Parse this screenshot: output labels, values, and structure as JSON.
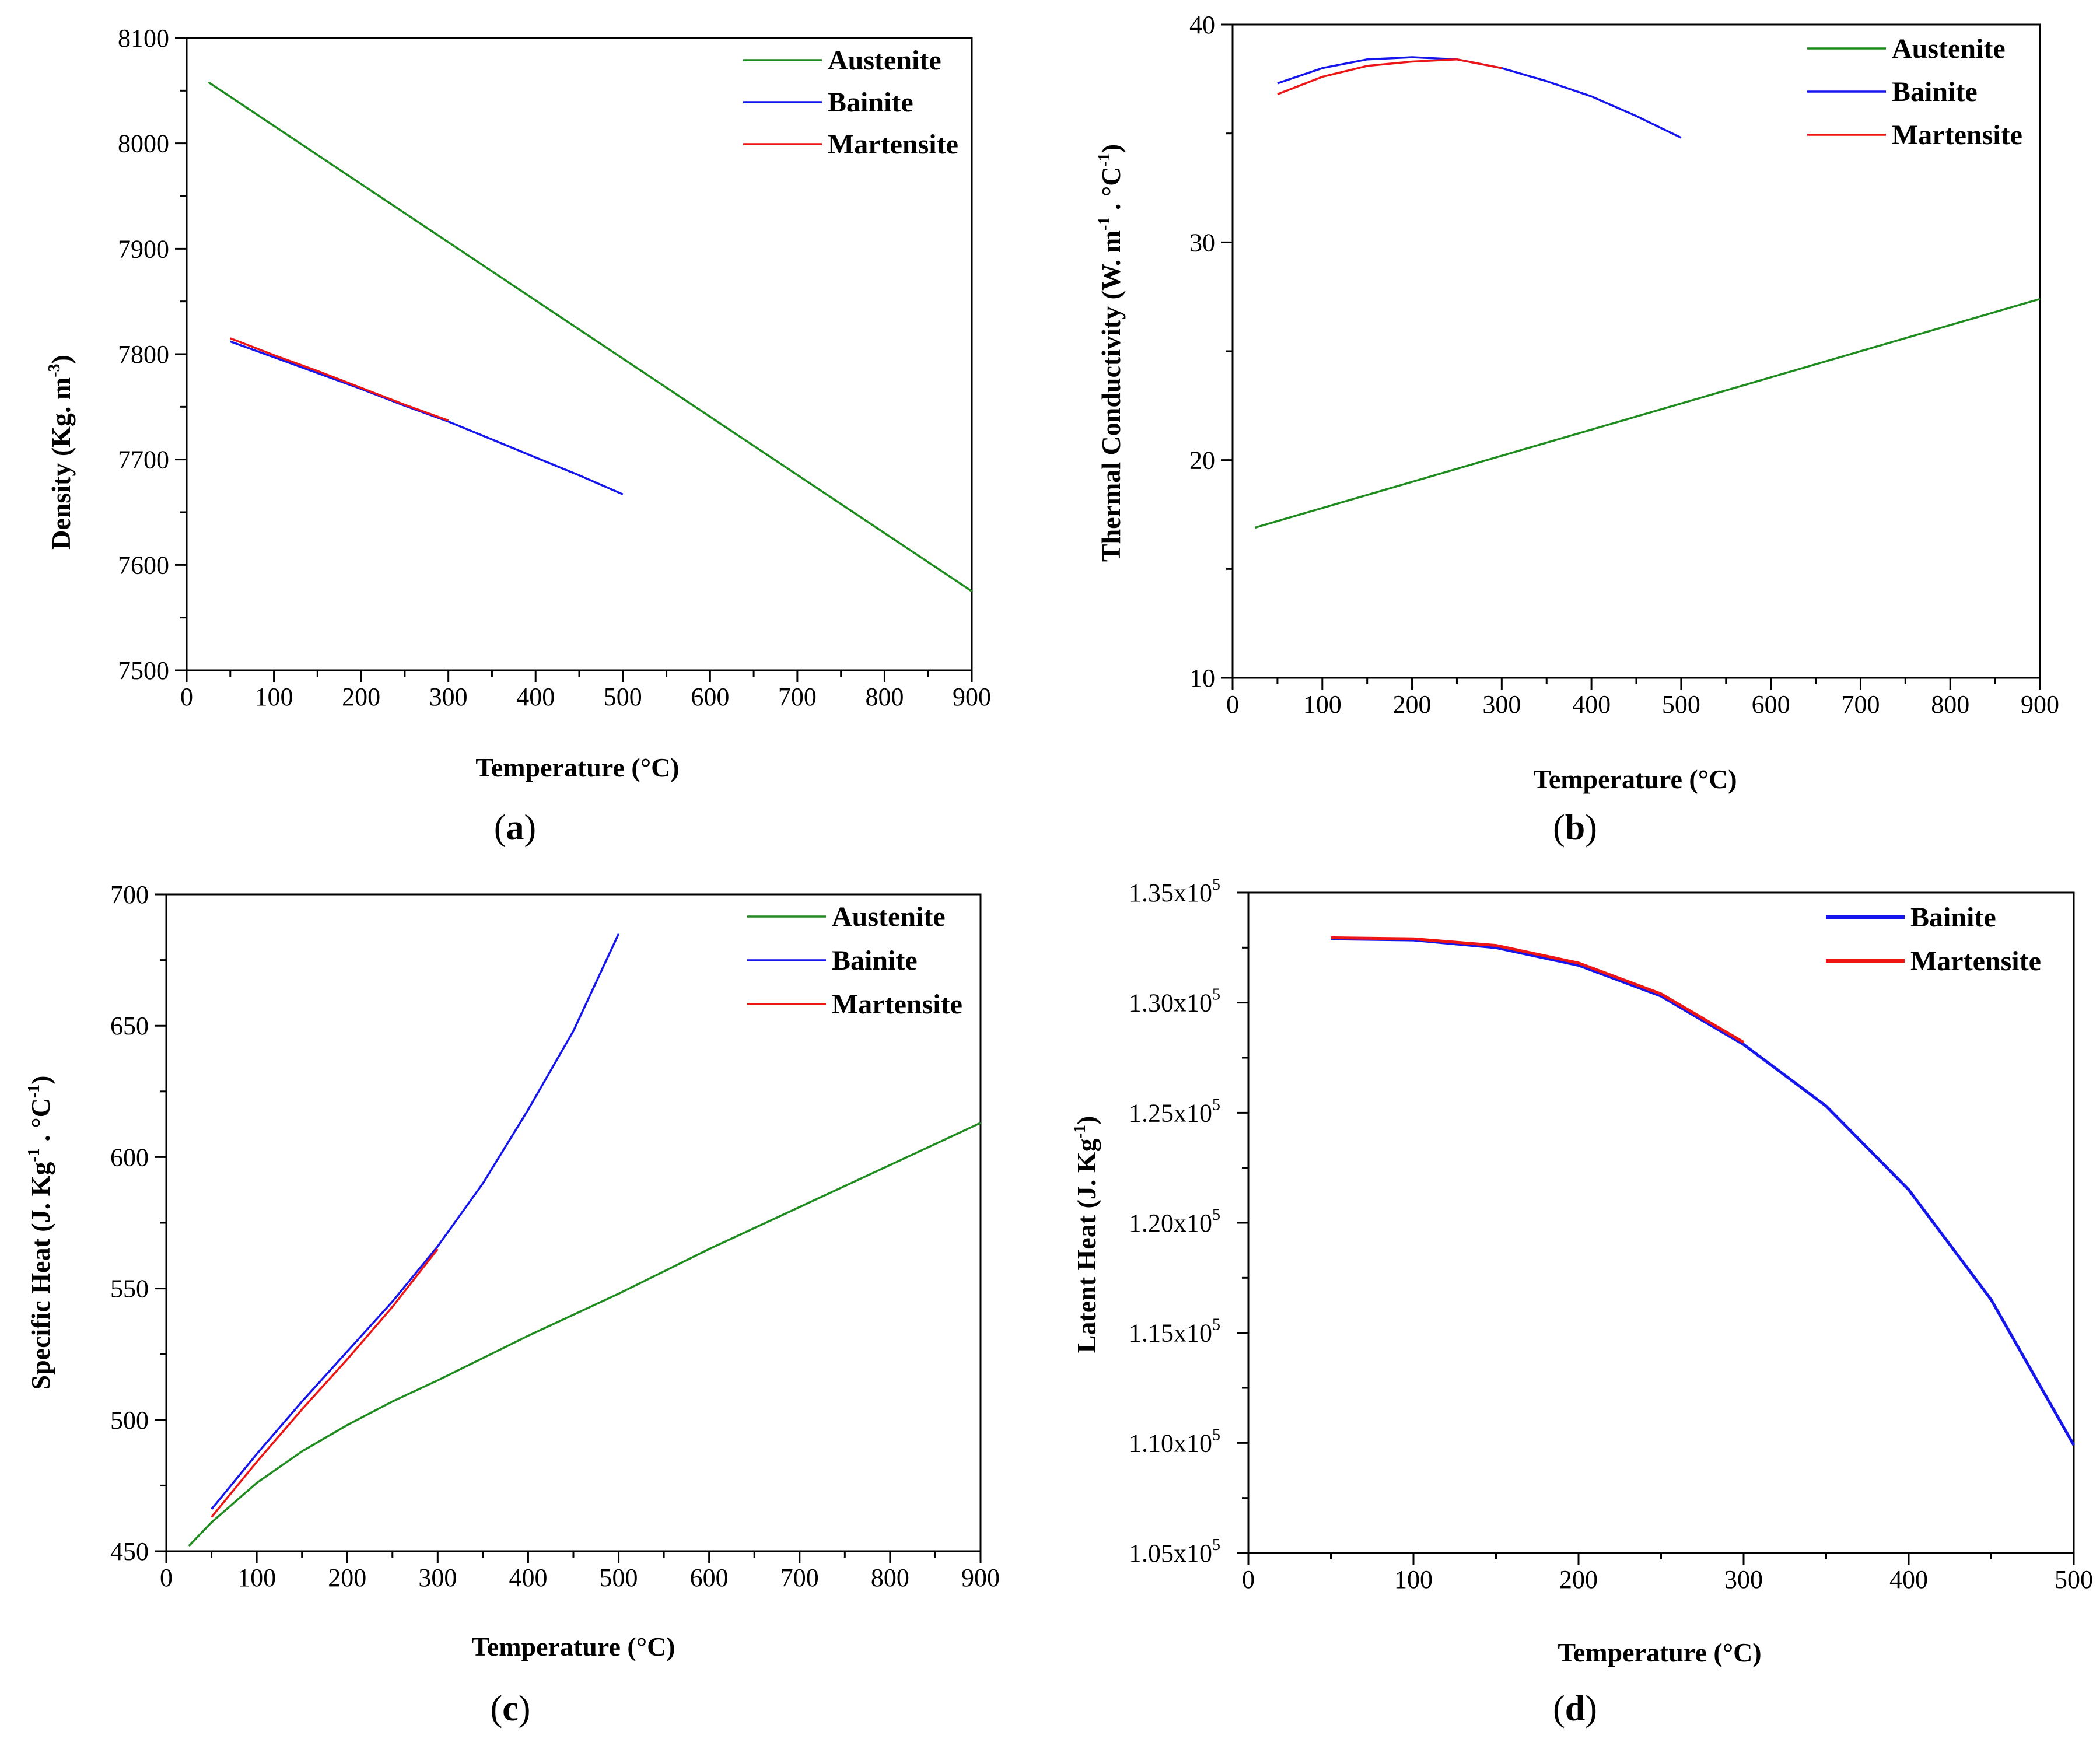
{
  "chart_data": [
    {
      "type": "line",
      "panel_label": "a",
      "xlabel": "Temperature (°C)",
      "ylabel": "Density (Kg. m-3)",
      "ylabel_parts": {
        "main": "Density (Kg. m",
        "sup": "-3",
        "close": ")"
      },
      "xlim": [
        0,
        900
      ],
      "ylim": [
        7500,
        8100
      ],
      "xticks": [
        0,
        100,
        200,
        300,
        400,
        500,
        600,
        700,
        800,
        900
      ],
      "yticks": [
        7500,
        7600,
        7700,
        7800,
        7900,
        8000,
        8100
      ],
      "ytick_labels": [
        "7500",
        "7600",
        "7700",
        "7800",
        "7900",
        "8000",
        "8100"
      ],
      "grid": false,
      "legend_position": "top-right",
      "series": [
        {
          "name": "Austenite",
          "color": "#1e8c1e",
          "x": [
            25,
            900
          ],
          "y": [
            8058,
            7575
          ]
        },
        {
          "name": "Bainite",
          "color": "#1515ee",
          "x": [
            50,
            100,
            150,
            200,
            250,
            300,
            350,
            400,
            450,
            500
          ],
          "y": [
            7812,
            7797,
            7782,
            7767,
            7751,
            7736,
            7719,
            7702,
            7685,
            7667
          ]
        },
        {
          "name": "Martensite",
          "color": "#ee1515",
          "x": [
            50,
            100,
            150,
            200,
            250,
            300
          ],
          "y": [
            7815,
            7799,
            7784,
            7768,
            7752,
            7737
          ]
        }
      ]
    },
    {
      "type": "line",
      "panel_label": "b",
      "xlabel": "Temperature (°C)",
      "ylabel": "Thermal Conductivity (W. m-1 . °C-1)",
      "ylabel_parts": {
        "main": "Thermal Conductivity (W. m",
        "sup1": "-1",
        "mid": " . °C",
        "sup2": "-1",
        "close": ")"
      },
      "xlim": [
        0,
        900
      ],
      "ylim": [
        10,
        40
      ],
      "xticks": [
        0,
        100,
        200,
        300,
        400,
        500,
        600,
        700,
        800,
        900
      ],
      "yticks": [
        10,
        20,
        30,
        40
      ],
      "ytick_labels": [
        "10",
        "20",
        "30",
        "40"
      ],
      "grid": false,
      "legend_position": "top-right",
      "series": [
        {
          "name": "Austenite",
          "color": "#1e8c1e",
          "x": [
            25,
            900
          ],
          "y": [
            16.9,
            27.4
          ]
        },
        {
          "name": "Bainite",
          "color": "#1515ee",
          "x": [
            50,
            100,
            150,
            200,
            250,
            300,
            350,
            400,
            450,
            500
          ],
          "y": [
            37.3,
            38.0,
            38.4,
            38.5,
            38.4,
            38.0,
            37.4,
            36.7,
            35.8,
            34.8
          ]
        },
        {
          "name": "Martensite",
          "color": "#ee1515",
          "x": [
            50,
            100,
            150,
            200,
            250,
            300
          ],
          "y": [
            36.8,
            37.6,
            38.1,
            38.3,
            38.4,
            38.0
          ]
        }
      ]
    },
    {
      "type": "line",
      "panel_label": "c",
      "xlabel": "Temperature (°C)",
      "ylabel": "Specific Heat (J. Kg-1 . °C-1)",
      "ylabel_parts": {
        "main": "Specific Heat (J. Kg",
        "sup1": "-1",
        "mid": " . °C",
        "sup2": "-1",
        "close": ")"
      },
      "xlim": [
        0,
        900
      ],
      "ylim": [
        450,
        700
      ],
      "xticks": [
        0,
        100,
        200,
        300,
        400,
        500,
        600,
        700,
        800,
        900
      ],
      "yticks": [
        450,
        500,
        550,
        600,
        650,
        700
      ],
      "ytick_labels": [
        "450",
        "500",
        "550",
        "600",
        "650",
        "700"
      ],
      "grid": false,
      "legend_position": "top-right",
      "series": [
        {
          "name": "Austenite",
          "color": "#1e8c1e",
          "x": [
            25,
            50,
            100,
            150,
            200,
            250,
            300,
            400,
            500,
            600,
            700,
            800,
            900
          ],
          "y": [
            452,
            461,
            476,
            488,
            498,
            507,
            515,
            532,
            548,
            565,
            581,
            597,
            613
          ]
        },
        {
          "name": "Bainite",
          "color": "#1515ee",
          "x": [
            50,
            100,
            150,
            200,
            250,
            300,
            350,
            400,
            450,
            500
          ],
          "y": [
            466,
            487,
            507,
            526,
            545,
            566,
            590,
            618,
            648,
            685
          ]
        },
        {
          "name": "Martensite",
          "color": "#ee1515",
          "x": [
            50,
            100,
            150,
            200,
            250,
            300
          ],
          "y": [
            463,
            484,
            504,
            523,
            543,
            565
          ]
        }
      ]
    },
    {
      "type": "line",
      "panel_label": "d",
      "xlabel": "Temperature (°C)",
      "ylabel": "Latent Heat (J. Kg-1)",
      "ylabel_parts": {
        "main": "Latent Heat (J. Kg",
        "sup": "-1",
        "close": ")"
      },
      "xlim": [
        0,
        500
      ],
      "ylim": [
        105000,
        135000
      ],
      "xticks": [
        0,
        100,
        200,
        300,
        400,
        500
      ],
      "yticks": [
        105000,
        110000,
        115000,
        120000,
        125000,
        130000,
        135000
      ],
      "ytick_labels": [
        "1.05x10",
        "1.10x10",
        "1.15x10",
        "1.20x10",
        "1.25x10",
        "1.30x10",
        "1.35x10"
      ],
      "ytick_exponent": "5",
      "grid": false,
      "legend_position": "top-right",
      "series": [
        {
          "name": "Bainite",
          "color": "#1515ee",
          "x": [
            50,
            100,
            150,
            200,
            250,
            300,
            350,
            400,
            450,
            500
          ],
          "y": [
            132900,
            132850,
            132500,
            131700,
            130300,
            128100,
            125300,
            121500,
            116500,
            109900
          ]
        },
        {
          "name": "Martensite",
          "color": "#ee1515",
          "x": [
            50,
            100,
            150,
            200,
            250,
            300
          ],
          "y": [
            132950,
            132900,
            132600,
            131800,
            130400,
            128200
          ]
        }
      ]
    }
  ]
}
